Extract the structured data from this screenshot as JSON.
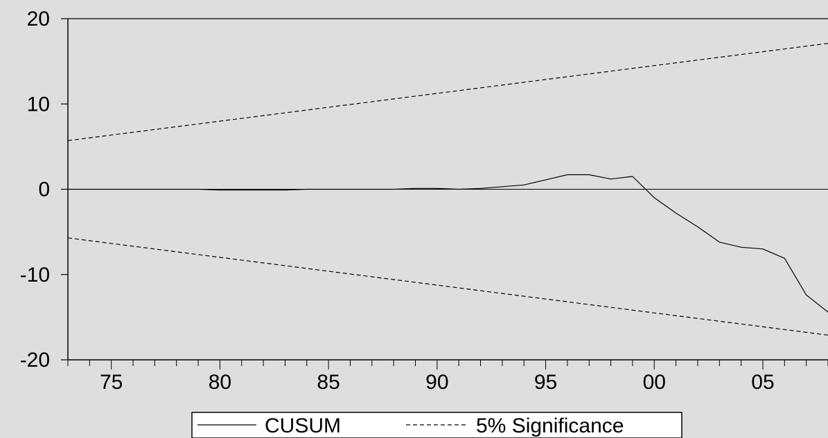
{
  "chart_data": {
    "type": "line",
    "title": "",
    "xlabel": "",
    "ylabel": "",
    "xlim": [
      1973,
      2008
    ],
    "ylim": [
      -20,
      20
    ],
    "yticks": [
      20,
      10,
      0,
      -10,
      -20
    ],
    "x_tick_labels": [
      {
        "x": 1975,
        "label": "75"
      },
      {
        "x": 1980,
        "label": "80"
      },
      {
        "x": 1985,
        "label": "85"
      },
      {
        "x": 1990,
        "label": "90"
      },
      {
        "x": 1995,
        "label": "95"
      },
      {
        "x": 2000,
        "label": "00"
      },
      {
        "x": 2005,
        "label": "05"
      }
    ],
    "grid": false,
    "zero_line": true,
    "legend_placement": "bottom-center",
    "series": [
      {
        "name": "CUSUM",
        "style": "solid",
        "x": [
          1973,
          1974,
          1975,
          1976,
          1977,
          1978,
          1979,
          1980,
          1981,
          1982,
          1983,
          1984,
          1985,
          1986,
          1987,
          1988,
          1989,
          1990,
          1991,
          1992,
          1993,
          1994,
          1995,
          1996,
          1997,
          1998,
          1999,
          2000,
          2001,
          2002,
          2003,
          2004,
          2005,
          2006,
          2007,
          2008
        ],
        "values": [
          0.0,
          0.0,
          0.0,
          0.0,
          0.0,
          0.0,
          0.0,
          -0.1,
          -0.1,
          -0.1,
          -0.1,
          0.0,
          0.0,
          0.0,
          0.0,
          0.0,
          0.1,
          0.1,
          0.0,
          0.1,
          0.3,
          0.5,
          1.1,
          1.7,
          1.7,
          1.2,
          1.5,
          -1.0,
          -2.8,
          -4.4,
          -6.2,
          -6.8,
          -7.0,
          -8.1,
          -12.4,
          -14.4
        ]
      },
      {
        "name": "5% Significance",
        "style": "dashed",
        "x": [
          1973,
          2008
        ],
        "values": [
          5.7,
          17.1
        ]
      },
      {
        "name": "",
        "style": "dashed",
        "x": [
          1973,
          2008
        ],
        "values": [
          -5.7,
          -17.1
        ]
      }
    ]
  }
}
